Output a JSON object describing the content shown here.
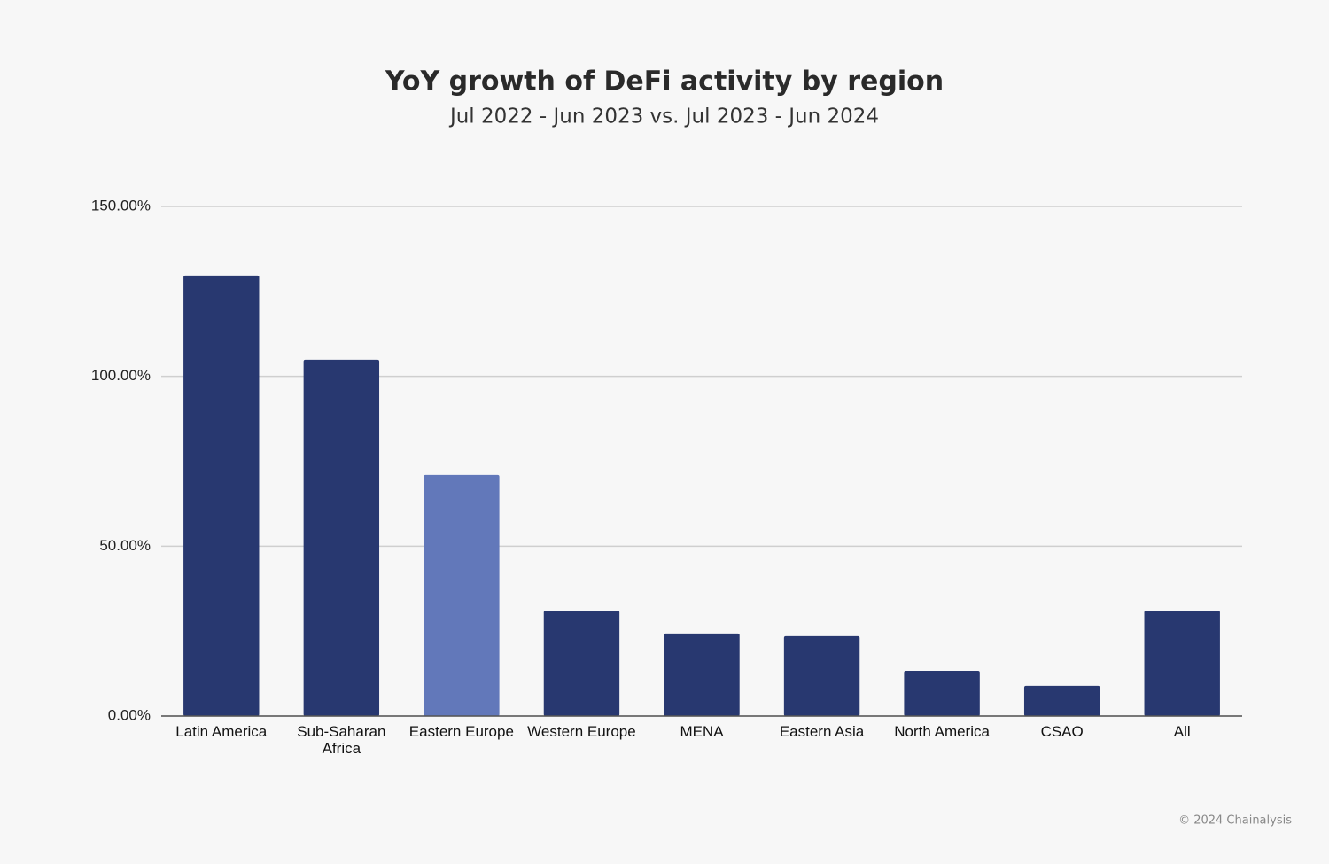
{
  "chart_data": {
    "type": "bar",
    "title": "YoY growth of DeFi activity by region",
    "subtitle": "Jul 2022 - Jun 2023 vs. Jul 2023 - Jun 2024",
    "categories": [
      "Latin America",
      "Sub-Saharan Africa",
      "Eastern Europe",
      "Western Europe",
      "MENA",
      "Eastern Asia",
      "North America",
      "CSAO",
      "All"
    ],
    "values": [
      129.7,
      104.9,
      71.0,
      31.0,
      24.3,
      23.5,
      13.3,
      8.9,
      31.0
    ],
    "colors": [
      "#283870",
      "#283870",
      "#6278ba",
      "#283870",
      "#283870",
      "#283870",
      "#283870",
      "#283870",
      "#283870"
    ],
    "ylim": [
      0,
      150
    ],
    "yticks": [
      {
        "value": 0,
        "label": "0.00%"
      },
      {
        "value": 50,
        "label": "50.00%"
      },
      {
        "value": 100,
        "label": "100.00%"
      },
      {
        "value": 150,
        "label": "150.00%"
      }
    ],
    "grid": true,
    "source": "© 2024 Chainalysis"
  }
}
